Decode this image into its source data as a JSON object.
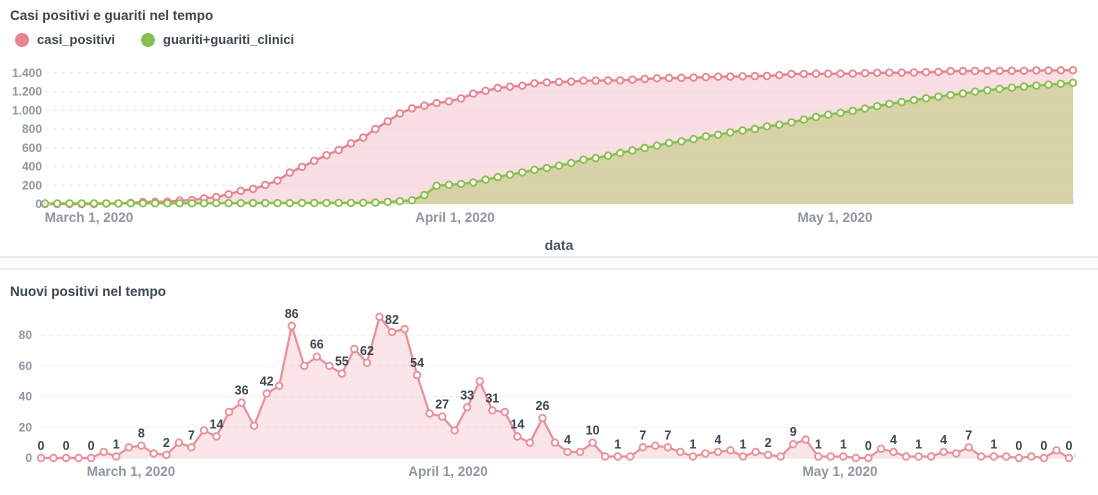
{
  "colors": {
    "positivi_line": "#e8848f",
    "positivi_fill": "#f9dee3",
    "guariti_line": "#8abf4f",
    "guariti_fill": "#d7d3a6",
    "nuovi_line": "#e8919c",
    "nuovi_fill": "#fbe5e9",
    "marker_fill": "#ffffff",
    "grid": "#d8d8d8",
    "axis_text": "#8d96a2",
    "dark_text": "#3d4652",
    "bracket": "#c9ced4"
  },
  "top_panel": {
    "title": "Casi positivi e guariti nel tempo",
    "legend": [
      {
        "label": "casi_positivi",
        "color": "#e8848f"
      },
      {
        "label": "guariti+guariti_clinici",
        "color": "#8abf4f"
      }
    ],
    "xlabel": "data",
    "ytick_labels": [
      "0",
      "200",
      "400",
      "600",
      "800",
      "1.000",
      "1.200",
      "1.400"
    ],
    "xtick_labels": [
      "March 1, 2020",
      "April 1, 2020",
      "May 1, 2020"
    ]
  },
  "bottom_panel": {
    "title": "Nuovi positivi nel tempo",
    "ytick_labels": [
      "0",
      "20",
      "40",
      "60",
      "80"
    ],
    "xtick_labels": [
      "March 1, 2020",
      "April 1, 2020",
      "May 1, 2020"
    ]
  },
  "chart_data": [
    {
      "type": "area",
      "title": "Casi positivi e guariti nel tempo",
      "xlabel": "data",
      "x_unit": "day",
      "x_start": "March 1, 2020",
      "xticks": [
        {
          "label": "March 1, 2020",
          "index": 0
        },
        {
          "label": "April 1, 2020",
          "index": 31
        },
        {
          "label": "May 1, 2020",
          "index": 61
        }
      ],
      "yticks": [
        0,
        200,
        400,
        600,
        800,
        1000,
        1200,
        1400
      ],
      "ylim": [
        0,
        1450
      ],
      "grid": "dashed-horizontal",
      "legend_position": "top-left",
      "series": [
        {
          "name": "casi_positivi",
          "values": [
            0,
            0,
            0,
            0,
            0,
            4,
            5,
            12,
            20,
            23,
            25,
            35,
            42,
            60,
            74,
            104,
            140,
            161,
            203,
            250,
            336,
            396,
            462,
            522,
            577,
            648,
            710,
            802,
            884,
            968,
            1022,
            1051,
            1078,
            1096,
            1129,
            1179,
            1210,
            1240,
            1254,
            1264,
            1290,
            1300,
            1304,
            1308,
            1318,
            1319,
            1320,
            1321,
            1328,
            1336,
            1343,
            1347,
            1348,
            1351,
            1355,
            1360,
            1361,
            1365,
            1367,
            1368,
            1377,
            1389,
            1390,
            1391,
            1392,
            1392,
            1392,
            1398,
            1402,
            1403,
            1404,
            1405,
            1409,
            1412,
            1419,
            1420,
            1421,
            1422,
            1422,
            1423,
            1423,
            1428,
            1428,
            1429,
            1430
          ]
        },
        {
          "name": "guariti+guariti_clinici",
          "values": [
            5,
            5,
            5,
            5,
            6,
            6,
            6,
            7,
            7,
            7,
            8,
            8,
            8,
            8,
            9,
            9,
            9,
            10,
            10,
            10,
            10,
            11,
            11,
            11,
            12,
            12,
            13,
            15,
            22,
            30,
            40,
            95,
            195,
            205,
            215,
            230,
            260,
            288,
            313,
            338,
            366,
            384,
            409,
            438,
            473,
            491,
            516,
            545,
            573,
            598,
            623,
            652,
            669,
            694,
            722,
            740,
            765,
            786,
            801,
            829,
            847,
            872,
            901,
            930,
            954,
            975,
            995,
            1020,
            1045,
            1070,
            1090,
            1110,
            1130,
            1147,
            1165,
            1180,
            1200,
            1215,
            1230,
            1243,
            1255,
            1265,
            1275,
            1285,
            1295
          ]
        }
      ]
    },
    {
      "type": "line",
      "title": "Nuovi positivi nel tempo",
      "x_unit": "day",
      "x_start": "March 1, 2020",
      "xticks": [
        {
          "label": "March 1, 2020",
          "index": 0
        },
        {
          "label": "April 1, 2020",
          "index": 31
        },
        {
          "label": "May 1, 2020",
          "index": 61
        }
      ],
      "yticks": [
        0,
        20,
        40,
        60,
        80
      ],
      "ylim": [
        0,
        95
      ],
      "grid": "dashed-horizontal",
      "label_every": 2,
      "values": [
        0,
        0,
        0,
        0,
        0,
        4,
        1,
        7,
        8,
        3,
        2,
        10,
        7,
        18,
        14,
        30,
        36,
        21,
        42,
        47,
        86,
        60,
        66,
        60,
        55,
        71,
        62,
        92,
        82,
        84,
        54,
        29,
        27,
        18,
        33,
        50,
        31,
        30,
        14,
        10,
        26,
        10,
        4,
        4,
        10,
        1,
        1,
        1,
        7,
        8,
        7,
        4,
        1,
        3,
        4,
        5,
        1,
        4,
        2,
        1,
        9,
        12,
        1,
        1,
        1,
        0,
        0,
        6,
        4,
        1,
        1,
        1,
        4,
        3,
        7,
        1,
        1,
        1,
        0,
        1,
        0,
        5,
        0
      ],
      "shown_labels": [
        0,
        0,
        0,
        1,
        8,
        2,
        7,
        14,
        36,
        42,
        86,
        66,
        55,
        62,
        82,
        54,
        27,
        33,
        31,
        14,
        26,
        4,
        10,
        1,
        7,
        7,
        1,
        4,
        1,
        2,
        9,
        1,
        1,
        0,
        4,
        1,
        4,
        7,
        1,
        0,
        0,
        0
      ]
    }
  ]
}
